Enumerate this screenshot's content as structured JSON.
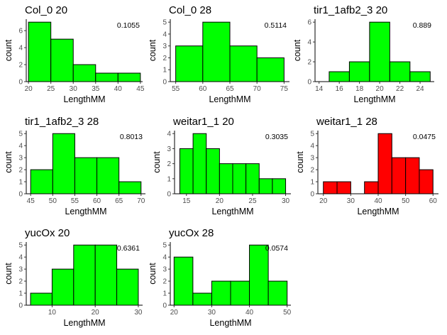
{
  "chart_data": [
    {
      "type": "bar",
      "title": "Col_0 20",
      "xlabel": "LengthMM",
      "ylabel": "count",
      "stat": "0.1055",
      "fill": "#00ff00",
      "bins": [
        {
          "x0": 20,
          "x1": 25,
          "count": 7
        },
        {
          "x0": 25,
          "x1": 30,
          "count": 5
        },
        {
          "x0": 30,
          "x1": 35,
          "count": 2
        },
        {
          "x0": 35,
          "x1": 40,
          "count": 1
        },
        {
          "x0": 40,
          "x1": 45,
          "count": 1
        }
      ],
      "xlim": [
        19.5,
        45.5
      ],
      "ylim": [
        0,
        7.35
      ],
      "xticks": [
        20,
        25,
        30,
        35,
        40,
        45
      ],
      "yticks": [
        0,
        2,
        4,
        6
      ]
    },
    {
      "type": "bar",
      "title": "Col_0 28",
      "xlabel": "LengthMM",
      "ylabel": "count",
      "stat": "0.5114",
      "fill": "#00ff00",
      "bins": [
        {
          "x0": 55,
          "x1": 60,
          "count": 3
        },
        {
          "x0": 60,
          "x1": 65,
          "count": 5
        },
        {
          "x0": 65,
          "x1": 70,
          "count": 3
        },
        {
          "x0": 70,
          "x1": 75,
          "count": 2
        }
      ],
      "xlim": [
        54,
        76
      ],
      "ylim": [
        0,
        5.25
      ],
      "xticks": [
        55,
        60,
        65,
        70,
        75
      ],
      "yticks": [
        0,
        1,
        2,
        3,
        4,
        5
      ]
    },
    {
      "type": "bar",
      "title": "tir1_1afb2_3 20",
      "xlabel": "LengthMM",
      "ylabel": "count",
      "stat": "0.889",
      "fill": "#00ff00",
      "bins": [
        {
          "x0": 15,
          "x1": 17,
          "count": 1
        },
        {
          "x0": 17,
          "x1": 19,
          "count": 2
        },
        {
          "x0": 19,
          "x1": 21,
          "count": 6
        },
        {
          "x0": 21,
          "x1": 23,
          "count": 2
        },
        {
          "x0": 23,
          "x1": 25,
          "count": 1
        }
      ],
      "xlim": [
        13.6,
        25.4
      ],
      "ylim": [
        0,
        6.3
      ],
      "xticks": [
        14,
        16,
        18,
        20,
        22,
        24
      ],
      "yticks": [
        0,
        2,
        4,
        6
      ]
    },
    {
      "type": "bar",
      "title": "tir1_1afb2_3 28",
      "xlabel": "LengthMM",
      "ylabel": "count",
      "stat": "0.8013",
      "fill": "#00ff00",
      "bins": [
        {
          "x0": 45,
          "x1": 50,
          "count": 2
        },
        {
          "x0": 50,
          "x1": 55,
          "count": 5
        },
        {
          "x0": 55,
          "x1": 60,
          "count": 3
        },
        {
          "x0": 60,
          "x1": 65,
          "count": 3
        },
        {
          "x0": 65,
          "x1": 70,
          "count": 1
        }
      ],
      "xlim": [
        44,
        71
      ],
      "ylim": [
        0,
        5.25
      ],
      "xticks": [
        45,
        50,
        55,
        60,
        65,
        70
      ],
      "yticks": [
        0,
        1,
        2,
        3,
        4,
        5
      ]
    },
    {
      "type": "bar",
      "title": "weitar1_1 20",
      "xlabel": "LengthMM",
      "ylabel": "count",
      "stat": "0.3035",
      "fill": "#00ff00",
      "bins": [
        {
          "x0": 14,
          "x1": 16,
          "count": 3
        },
        {
          "x0": 16,
          "x1": 18,
          "count": 4
        },
        {
          "x0": 18,
          "x1": 20,
          "count": 3
        },
        {
          "x0": 20,
          "x1": 22,
          "count": 2
        },
        {
          "x0": 22,
          "x1": 24,
          "count": 2
        },
        {
          "x0": 24,
          "x1": 26,
          "count": 2
        },
        {
          "x0": 26,
          "x1": 28,
          "count": 1
        },
        {
          "x0": 28,
          "x1": 30,
          "count": 1
        }
      ],
      "xlim": [
        13.2,
        30.8
      ],
      "ylim": [
        0,
        4.2
      ],
      "xticks": [
        15,
        20,
        25,
        30
      ],
      "yticks": [
        0,
        1,
        2,
        3,
        4
      ]
    },
    {
      "type": "bar",
      "title": "weitar1_1 28",
      "xlabel": "LengthMM",
      "ylabel": "count",
      "stat": "0.0475",
      "fill": "#ff0000",
      "bins": [
        {
          "x0": 20,
          "x1": 25,
          "count": 1
        },
        {
          "x0": 25,
          "x1": 30,
          "count": 1
        },
        {
          "x0": 30,
          "x1": 35,
          "count": 0
        },
        {
          "x0": 35,
          "x1": 40,
          "count": 1
        },
        {
          "x0": 40,
          "x1": 45,
          "count": 5
        },
        {
          "x0": 45,
          "x1": 50,
          "count": 3
        },
        {
          "x0": 50,
          "x1": 55,
          "count": 3
        },
        {
          "x0": 55,
          "x1": 60,
          "count": 2
        }
      ],
      "xlim": [
        18,
        62
      ],
      "ylim": [
        0,
        5.25
      ],
      "xticks": [
        20,
        30,
        40,
        50,
        60
      ],
      "yticks": [
        0,
        1,
        2,
        3,
        4,
        5
      ]
    },
    {
      "type": "bar",
      "title": "yucOx 20",
      "xlabel": "LengthMM",
      "ylabel": "count",
      "stat": "0.6361",
      "fill": "#00ff00",
      "bins": [
        {
          "x0": 5,
          "x1": 10,
          "count": 1
        },
        {
          "x0": 10,
          "x1": 15,
          "count": 3
        },
        {
          "x0": 15,
          "x1": 20,
          "count": 5
        },
        {
          "x0": 20,
          "x1": 25,
          "count": 5
        },
        {
          "x0": 25,
          "x1": 30,
          "count": 3
        }
      ],
      "xlim": [
        4,
        31
      ],
      "ylim": [
        0,
        5.25
      ],
      "xticks": [
        10,
        20,
        30
      ],
      "yticks": [
        0,
        1,
        2,
        3,
        4,
        5
      ]
    },
    {
      "type": "bar",
      "title": "yucOx 28",
      "xlabel": "LengthMM",
      "ylabel": "count",
      "stat": "0.0574",
      "fill": "#00ff00",
      "bins": [
        {
          "x0": 20,
          "x1": 25,
          "count": 4
        },
        {
          "x0": 25,
          "x1": 30,
          "count": 1
        },
        {
          "x0": 30,
          "x1": 35,
          "count": 2
        },
        {
          "x0": 35,
          "x1": 40,
          "count": 2
        },
        {
          "x0": 40,
          "x1": 45,
          "count": 5
        },
        {
          "x0": 45,
          "x1": 50,
          "count": 2
        }
      ],
      "xlim": [
        19,
        51
      ],
      "ylim": [
        0,
        5.25
      ],
      "xticks": [
        20,
        30,
        40,
        50
      ],
      "yticks": [
        0,
        1,
        2,
        3,
        4,
        5
      ]
    }
  ]
}
